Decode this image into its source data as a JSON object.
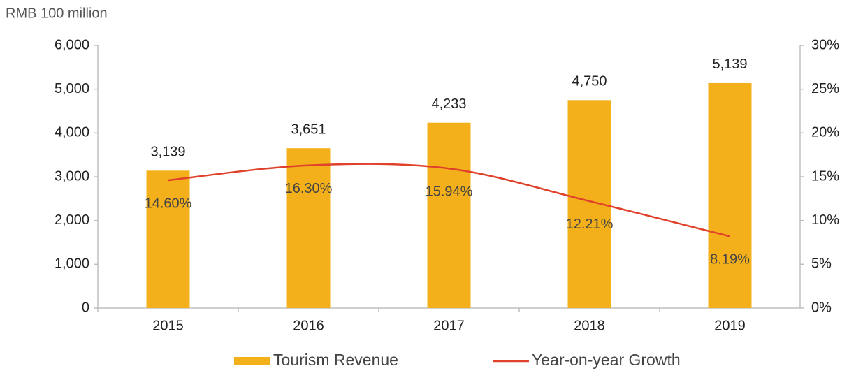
{
  "chart_data": {
    "type": "bar",
    "y_label": "RMB 100 million",
    "categories": [
      "2015",
      "2016",
      "2017",
      "2018",
      "2019"
    ],
    "series": [
      {
        "name": "Tourism Revenue",
        "type": "bar",
        "color": "#f4b01b",
        "values": [
          3139,
          3651,
          4233,
          4750,
          5139
        ],
        "value_labels": [
          "3,139",
          "3,651",
          "4,233",
          "4,750",
          "5,139"
        ]
      },
      {
        "name": "Year-on-year Growth",
        "type": "line",
        "axis": "y2",
        "color": "#e0412a",
        "values": [
          14.6,
          16.3,
          15.94,
          12.21,
          8.19
        ],
        "value_labels": [
          "14.60%",
          "16.30%",
          "15.94%",
          "12.21%",
          "8.19%"
        ]
      }
    ],
    "ylim": [
      0,
      6000
    ],
    "yticks": [
      0,
      {
        "value": 1000,
        "label": "1,000"
      },
      {
        "value": 2000,
        "label": "2,000"
      },
      {
        "value": 3000,
        "label": "3,000"
      },
      {
        "value": 4000,
        "label": "4,000"
      },
      {
        "value": 5000,
        "label": "5,000"
      },
      {
        "value": 6000,
        "label": "6,000"
      }
    ],
    "y2lim": [
      0,
      30
    ],
    "y2ticks": [
      {
        "value": 0,
        "label": "0%"
      },
      {
        "value": 5,
        "label": "5%"
      },
      {
        "value": 10,
        "label": "10%"
      },
      {
        "value": 15,
        "label": "15%"
      },
      {
        "value": 20,
        "label": "20%"
      },
      {
        "value": 25,
        "label": "25%"
      },
      {
        "value": 30,
        "label": "30%"
      }
    ],
    "smooth": true
  }
}
